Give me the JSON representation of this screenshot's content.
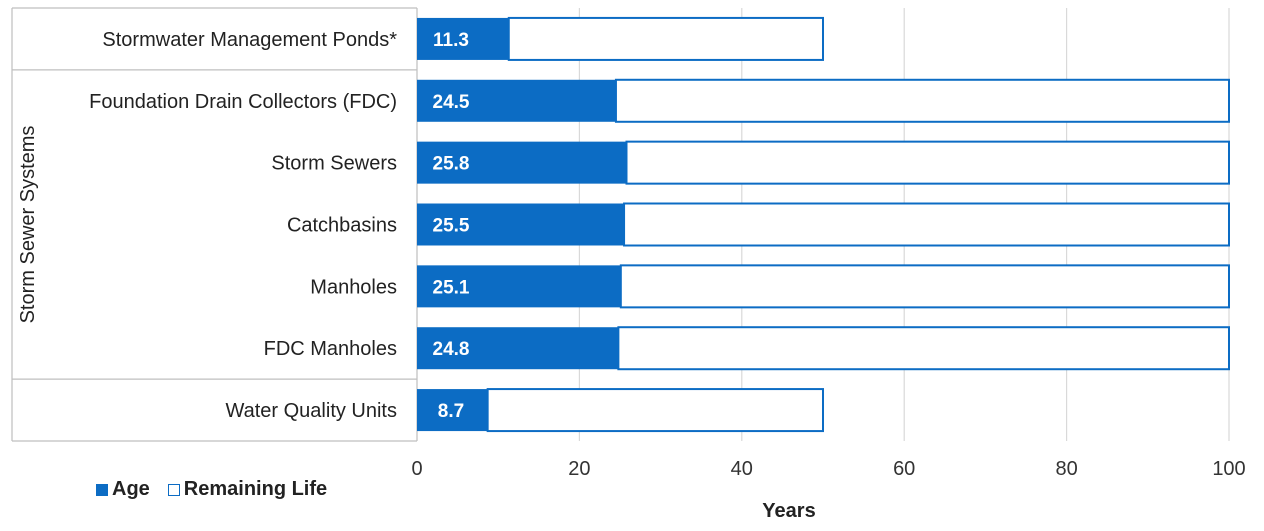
{
  "chart_data": {
    "type": "bar",
    "orientation": "horizontal",
    "stacked": true,
    "categories": [
      "Stormwater Management Ponds*",
      "Foundation Drain Collectors (FDC)",
      "Storm Sewers",
      "Catchbasins",
      "Manholes",
      "FDC Manholes",
      "Water Quality Units"
    ],
    "group_label": "Storm Sewer Systems",
    "group_categories": [
      "Foundation Drain Collectors (FDC)",
      "Storm Sewers",
      "Catchbasins",
      "Manholes",
      "FDC Manholes"
    ],
    "series": [
      {
        "name": "Age",
        "values": [
          11.3,
          24.5,
          25.8,
          25.5,
          25.1,
          24.8,
          8.7
        ],
        "color": "#0c6cc4"
      },
      {
        "name": "Remaining Life",
        "values": [
          38.7,
          75.5,
          74.2,
          74.5,
          74.9,
          75.2,
          41.3
        ],
        "color": "#ffffff",
        "stroke": "#0c6cc4"
      }
    ],
    "data_labels": [
      "11.3",
      "24.5",
      "25.8",
      "25.5",
      "25.1",
      "24.8",
      "8.7"
    ],
    "xlabel": "Years",
    "ylabel": "",
    "xlim": [
      0,
      100
    ],
    "xticks": [
      "0",
      "20",
      "40",
      "60",
      "80",
      "100"
    ],
    "grid": "vertical",
    "legend_position": "bottom-left"
  }
}
